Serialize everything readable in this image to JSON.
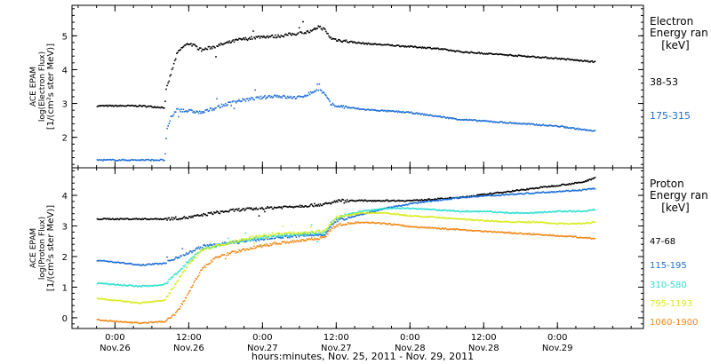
{
  "chart_data": [
    {
      "type": "scatter",
      "ylabel": [
        "ACE EPAM",
        "log(Electron Flux)",
        "[1/(cm²s ster MeV)]"
      ],
      "legend_title": [
        "Electron",
        "Energy ran",
        "[keV]"
      ],
      "ylim": [
        1.1,
        5.9
      ],
      "yticks": [
        2,
        3,
        4,
        5
      ],
      "series": [
        {
          "name": "38-53",
          "color": "#000000",
          "x": [
            -3,
            4,
            8,
            8.2,
            9,
            10,
            11,
            12,
            14,
            18,
            20,
            24,
            26,
            28,
            30,
            32,
            33,
            34,
            35,
            36,
            40,
            44,
            48,
            52,
            56,
            60,
            64,
            68,
            72,
            76,
            78
          ],
          "y": [
            2.95,
            2.95,
            2.9,
            3.4,
            3.9,
            4.5,
            4.7,
            4.8,
            4.6,
            4.8,
            4.9,
            5.0,
            5.0,
            5.05,
            5.1,
            5.15,
            5.3,
            5.2,
            4.95,
            4.9,
            4.8,
            4.75,
            4.7,
            4.65,
            4.55,
            4.5,
            4.45,
            4.4,
            4.35,
            4.28,
            4.25
          ]
        },
        {
          "name": "175-315",
          "color": "#1f6fd6",
          "x": [
            -3,
            4,
            8,
            8.3,
            9,
            10,
            11,
            12,
            14,
            18,
            20,
            24,
            26,
            28,
            30,
            32,
            33,
            34,
            35,
            36,
            40,
            44,
            48,
            52,
            56,
            60,
            64,
            68,
            72,
            76,
            78
          ],
          "y": [
            1.35,
            1.35,
            1.35,
            2.2,
            2.6,
            2.85,
            2.8,
            2.8,
            2.75,
            3.0,
            3.1,
            3.2,
            3.25,
            3.2,
            3.2,
            3.35,
            3.45,
            3.3,
            3.0,
            2.95,
            2.85,
            2.8,
            2.75,
            2.65,
            2.55,
            2.5,
            2.45,
            2.4,
            2.35,
            2.25,
            2.2
          ]
        }
      ]
    },
    {
      "type": "scatter",
      "ylabel": [
        "ACE EPAM",
        "log(Proton Flux)",
        "[1/(cm²s ster MeV)]"
      ],
      "legend_title": [
        "Proton",
        "Energy ran",
        "[keV]"
      ],
      "ylim": [
        -0.35,
        4.9
      ],
      "yticks": [
        0,
        1,
        2,
        3,
        4
      ],
      "series": [
        {
          "name": "47-68",
          "color": "#000000",
          "x": [
            -3,
            4,
            8,
            12,
            16,
            20,
            24,
            28,
            32,
            35,
            36,
            40,
            44,
            48,
            52,
            56,
            60,
            64,
            68,
            72,
            76,
            78
          ],
          "y": [
            3.25,
            3.25,
            3.25,
            3.3,
            3.45,
            3.55,
            3.6,
            3.65,
            3.7,
            3.75,
            3.85,
            3.85,
            3.85,
            3.85,
            3.9,
            3.95,
            4.05,
            4.15,
            4.25,
            4.35,
            4.45,
            4.6
          ]
        },
        {
          "name": "115-195",
          "color": "#1f6fd6",
          "x": [
            -3,
            4,
            8,
            10,
            12,
            14,
            18,
            22,
            26,
            30,
            34,
            35,
            36,
            40,
            44,
            48,
            52,
            56,
            60,
            64,
            68,
            72,
            76,
            78
          ],
          "y": [
            1.9,
            1.75,
            1.8,
            2.0,
            2.15,
            2.35,
            2.45,
            2.55,
            2.65,
            2.7,
            2.75,
            3.0,
            3.2,
            3.4,
            3.6,
            3.75,
            3.85,
            3.95,
            4.0,
            4.05,
            4.1,
            4.15,
            4.2,
            4.25
          ]
        },
        {
          "name": "310-580",
          "color": "#30e0d0",
          "x": [
            -3,
            4,
            8,
            10,
            12,
            14,
            18,
            22,
            26,
            30,
            34,
            35,
            36,
            40,
            44,
            48,
            52,
            56,
            60,
            64,
            68,
            72,
            76,
            78
          ],
          "y": [
            1.15,
            1.05,
            1.1,
            1.5,
            1.9,
            2.25,
            2.45,
            2.6,
            2.7,
            2.75,
            2.8,
            3.1,
            3.3,
            3.5,
            3.6,
            3.6,
            3.55,
            3.5,
            3.5,
            3.45,
            3.45,
            3.5,
            3.5,
            3.55
          ]
        },
        {
          "name": "795-1193",
          "color": "#d8ec1e",
          "x": [
            -3,
            4,
            8,
            10,
            12,
            14,
            18,
            22,
            26,
            30,
            34,
            35,
            36,
            40,
            44,
            48,
            52,
            56,
            60,
            64,
            68,
            72,
            76,
            78
          ],
          "y": [
            0.65,
            0.5,
            0.6,
            1.2,
            1.8,
            2.25,
            2.45,
            2.65,
            2.75,
            2.8,
            2.85,
            3.1,
            3.3,
            3.45,
            3.45,
            3.35,
            3.3,
            3.25,
            3.2,
            3.15,
            3.15,
            3.1,
            3.1,
            3.15
          ]
        },
        {
          "name": "1060-1900",
          "color": "#f08a18",
          "x": [
            -3,
            4,
            8,
            10,
            12,
            14,
            16,
            18,
            22,
            26,
            30,
            34,
            35,
            36,
            40,
            44,
            48,
            52,
            56,
            60,
            64,
            68,
            72,
            76,
            78
          ],
          "y": [
            -0.05,
            -0.15,
            -0.1,
            0.2,
            0.9,
            1.6,
            1.95,
            2.1,
            2.3,
            2.45,
            2.55,
            2.65,
            2.9,
            3.05,
            3.15,
            3.1,
            3.0,
            2.95,
            2.9,
            2.85,
            2.8,
            2.75,
            2.7,
            2.65,
            2.6
          ]
        }
      ]
    }
  ],
  "x_axis": {
    "title": "hours:minutes, Nov. 25, 2011 - Nov. 29, 2011",
    "range_hours": [
      -7,
      86
    ],
    "ticks": [
      {
        "hour": 0,
        "time": "0:00",
        "date": "Nov.26"
      },
      {
        "hour": 12,
        "time": "12:00",
        "date": "Nov.26"
      },
      {
        "hour": 24,
        "time": "0:00",
        "date": "Nov.27"
      },
      {
        "hour": 36,
        "time": "12:00",
        "date": "Nov.27"
      },
      {
        "hour": 48,
        "time": "0:00",
        "date": "Nov.28"
      },
      {
        "hour": 60,
        "time": "12:00",
        "date": "Nov.28"
      },
      {
        "hour": 72,
        "time": "0:00",
        "date": "Nov.29"
      }
    ]
  }
}
